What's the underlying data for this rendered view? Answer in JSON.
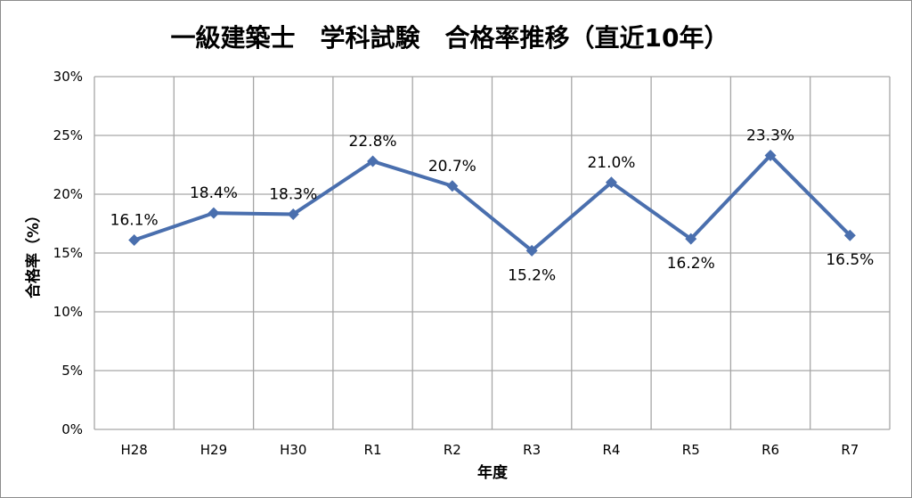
{
  "chart_data": {
    "type": "line",
    "title": "一級建築士　学科試験　合格率推移（直近10年）",
    "xlabel": "年度",
    "ylabel": "合格率（%）",
    "categories": [
      "H28",
      "H29",
      "H30",
      "R1",
      "R2",
      "R3",
      "R4",
      "R5",
      "R6",
      "R7"
    ],
    "series": [
      {
        "values": [
          16.1,
          18.4,
          18.3,
          22.8,
          20.7,
          15.2,
          21.0,
          16.2,
          23.3,
          16.5
        ],
        "data_labels": [
          "16.1%",
          "18.4%",
          "18.3%",
          "22.8%",
          "20.7%",
          "15.2%",
          "21.0%",
          "16.2%",
          "23.3%",
          "16.5%"
        ],
        "color": "#4a6fae",
        "marker": "diamond"
      }
    ],
    "ylim": [
      0,
      30
    ],
    "yticks": [
      0,
      5,
      10,
      15,
      20,
      25,
      30
    ],
    "ytick_labels": [
      "0%",
      "5%",
      "10%",
      "15%",
      "20%",
      "25%",
      "30%"
    ],
    "grid": true,
    "legend": "none"
  }
}
